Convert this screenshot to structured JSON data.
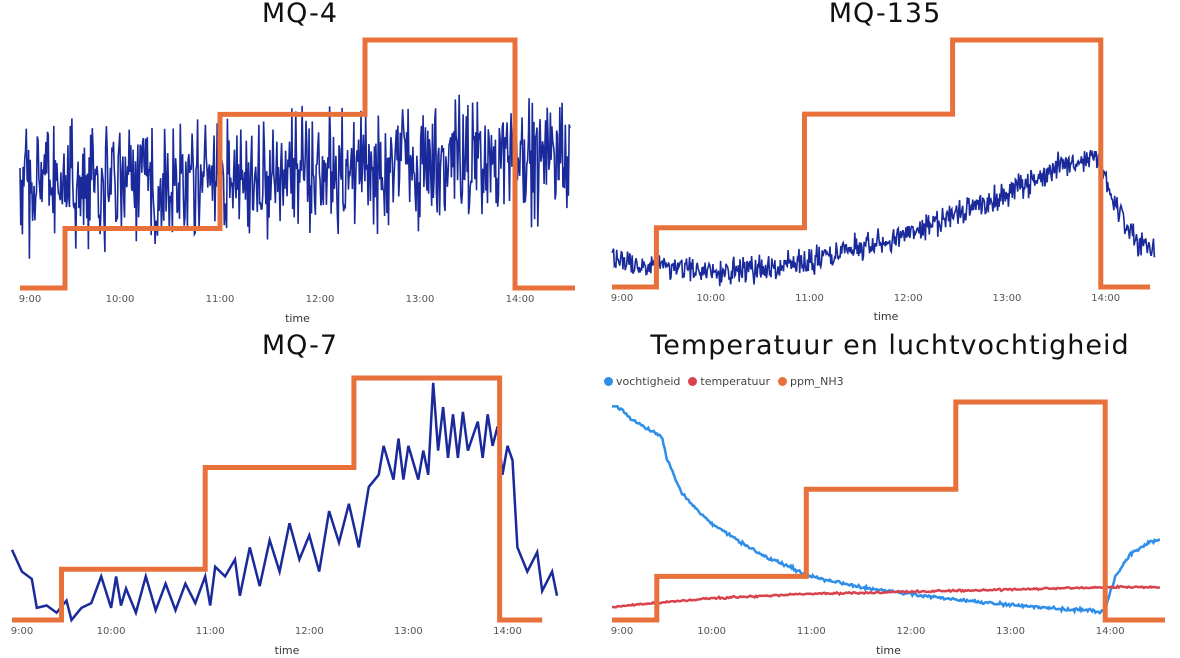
{
  "colors": {
    "sensor": "#1a2a9b",
    "ppm": "#e8703a",
    "vocht": "#2f8fe8",
    "temp": "#d9434e"
  },
  "chart_data": [
    {
      "id": "mq4",
      "type": "line",
      "title": "MQ-4",
      "xlabel": "time",
      "ylabel": "",
      "xticks": [
        "9:00",
        "10:00",
        "11:00",
        "12:00",
        "13:00",
        "14:00"
      ],
      "xlim": [
        9.0,
        14.55
      ],
      "ylim": [
        0,
        1
      ],
      "series": [
        {
          "role": "sensor",
          "noisy": true,
          "base": [
            [
              9.0,
              0.4
            ],
            [
              10.0,
              0.42
            ],
            [
              11.0,
              0.45
            ],
            [
              12.0,
              0.47
            ],
            [
              13.0,
              0.5
            ],
            [
              14.0,
              0.52
            ],
            [
              14.5,
              0.52
            ]
          ],
          "amp": 0.22,
          "n": 700
        },
        {
          "role": "step",
          "steps": [
            [
              9.0,
              0.0
            ],
            [
              9.45,
              0.24
            ],
            [
              11.0,
              0.7
            ],
            [
              12.45,
              1.0
            ],
            [
              13.95,
              0.0
            ],
            [
              14.55,
              0.0
            ]
          ]
        }
      ]
    },
    {
      "id": "mq135",
      "type": "line",
      "title": "MQ-135",
      "xlabel": "time",
      "ylabel": "",
      "xticks": [
        "9:00",
        "10:00",
        "11:00",
        "12:00",
        "13:00",
        "14:00"
      ],
      "xlim": [
        9.0,
        14.55
      ],
      "ylim": [
        0,
        1
      ],
      "series": [
        {
          "role": "sensor",
          "noisy": true,
          "base": [
            [
              9.0,
              0.12
            ],
            [
              9.5,
              0.08
            ],
            [
              10.0,
              0.06
            ],
            [
              10.5,
              0.07
            ],
            [
              11.0,
              0.1
            ],
            [
              11.5,
              0.16
            ],
            [
              12.0,
              0.22
            ],
            [
              12.5,
              0.3
            ],
            [
              13.0,
              0.38
            ],
            [
              13.5,
              0.48
            ],
            [
              13.9,
              0.53
            ],
            [
              14.05,
              0.38
            ],
            [
              14.3,
              0.2
            ],
            [
              14.5,
              0.13
            ]
          ],
          "amp": 0.05,
          "n": 700
        },
        {
          "role": "step",
          "steps": [
            [
              9.0,
              0.0
            ],
            [
              9.45,
              0.24
            ],
            [
              10.95,
              0.7
            ],
            [
              12.45,
              1.0
            ],
            [
              13.95,
              0.0
            ],
            [
              14.45,
              0.0
            ]
          ]
        }
      ]
    },
    {
      "id": "mq7",
      "type": "line",
      "title": "MQ-7",
      "xlabel": "time",
      "ylabel": "",
      "xticks": [
        "9:00",
        "10:00",
        "11:00",
        "12:00",
        "13:00",
        "14:00"
      ],
      "xlim": [
        9.0,
        14.55
      ],
      "ylim": [
        0,
        1
      ],
      "series": [
        {
          "role": "sensor",
          "noisy": false,
          "values": [
            [
              9.0,
              0.29
            ],
            [
              9.1,
              0.2
            ],
            [
              9.2,
              0.17
            ],
            [
              9.25,
              0.05
            ],
            [
              9.35,
              0.06
            ],
            [
              9.45,
              0.03
            ],
            [
              9.55,
              0.08
            ],
            [
              9.6,
              0.0
            ],
            [
              9.7,
              0.05
            ],
            [
              9.8,
              0.07
            ],
            [
              9.9,
              0.18
            ],
            [
              10.0,
              0.05
            ],
            [
              10.05,
              0.18
            ],
            [
              10.1,
              0.06
            ],
            [
              10.15,
              0.13
            ],
            [
              10.25,
              0.03
            ],
            [
              10.35,
              0.18
            ],
            [
              10.45,
              0.04
            ],
            [
              10.55,
              0.15
            ],
            [
              10.65,
              0.04
            ],
            [
              10.75,
              0.15
            ],
            [
              10.85,
              0.07
            ],
            [
              10.95,
              0.18
            ],
            [
              11.0,
              0.06
            ],
            [
              11.05,
              0.22
            ],
            [
              11.15,
              0.18
            ],
            [
              11.25,
              0.25
            ],
            [
              11.3,
              0.1
            ],
            [
              11.4,
              0.3
            ],
            [
              11.5,
              0.14
            ],
            [
              11.6,
              0.33
            ],
            [
              11.7,
              0.2
            ],
            [
              11.8,
              0.4
            ],
            [
              11.9,
              0.25
            ],
            [
              12.0,
              0.35
            ],
            [
              12.1,
              0.2
            ],
            [
              12.2,
              0.45
            ],
            [
              12.3,
              0.32
            ],
            [
              12.4,
              0.48
            ],
            [
              12.5,
              0.3
            ],
            [
              12.6,
              0.55
            ],
            [
              12.7,
              0.6
            ],
            [
              12.75,
              0.72
            ],
            [
              12.85,
              0.58
            ],
            [
              12.9,
              0.75
            ],
            [
              12.95,
              0.58
            ],
            [
              13.0,
              0.72
            ],
            [
              13.1,
              0.58
            ],
            [
              13.15,
              0.7
            ],
            [
              13.2,
              0.6
            ],
            [
              13.25,
              0.98
            ],
            [
              13.3,
              0.7
            ],
            [
              13.35,
              0.88
            ],
            [
              13.4,
              0.67
            ],
            [
              13.45,
              0.85
            ],
            [
              13.5,
              0.67
            ],
            [
              13.55,
              0.86
            ],
            [
              13.6,
              0.7
            ],
            [
              13.7,
              0.82
            ],
            [
              13.75,
              0.67
            ],
            [
              13.8,
              0.85
            ],
            [
              13.85,
              0.72
            ],
            [
              13.9,
              0.8
            ],
            [
              13.95,
              0.6
            ],
            [
              14.0,
              0.72
            ],
            [
              14.05,
              0.66
            ],
            [
              14.1,
              0.3
            ],
            [
              14.2,
              0.2
            ],
            [
              14.3,
              0.28
            ],
            [
              14.35,
              0.12
            ],
            [
              14.45,
              0.2
            ],
            [
              14.5,
              0.1
            ]
          ]
        },
        {
          "role": "step",
          "steps": [
            [
              9.0,
              0.0
            ],
            [
              9.5,
              0.21
            ],
            [
              10.95,
              0.63
            ],
            [
              12.45,
              1.0
            ],
            [
              13.92,
              0.0
            ],
            [
              14.35,
              0.0
            ]
          ]
        }
      ]
    },
    {
      "id": "temp",
      "type": "line",
      "title": "Temperatuur en luchtvochtigheid",
      "xlabel": "time",
      "ylabel": "",
      "xticks": [
        "9:00",
        "10:00",
        "11:00",
        "12:00",
        "13:00",
        "14:00"
      ],
      "xlim": [
        9.0,
        14.55
      ],
      "ylim": [
        0,
        1
      ],
      "legend": [
        {
          "name": "vochtigheid",
          "role": "vocht"
        },
        {
          "name": "temperatuur",
          "role": "temp"
        },
        {
          "name": "ppm_NH3",
          "role": "ppm"
        }
      ],
      "series": [
        {
          "role": "vocht",
          "noisy": true,
          "base": [
            [
              9.0,
              1.0
            ],
            [
              9.2,
              0.92
            ],
            [
              9.5,
              0.84
            ],
            [
              9.55,
              0.74
            ],
            [
              9.7,
              0.58
            ],
            [
              10.0,
              0.44
            ],
            [
              10.5,
              0.3
            ],
            [
              11.0,
              0.2
            ],
            [
              11.5,
              0.15
            ],
            [
              12.0,
              0.12
            ],
            [
              12.5,
              0.09
            ],
            [
              13.0,
              0.07
            ],
            [
              13.5,
              0.05
            ],
            [
              13.9,
              0.04
            ],
            [
              13.95,
              0.05
            ],
            [
              14.05,
              0.2
            ],
            [
              14.2,
              0.3
            ],
            [
              14.4,
              0.36
            ],
            [
              14.5,
              0.37
            ]
          ],
          "amp": 0.007,
          "n": 500
        },
        {
          "role": "temp",
          "noisy": true,
          "base": [
            [
              9.0,
              0.06
            ],
            [
              10.0,
              0.1
            ],
            [
              11.0,
              0.12
            ],
            [
              12.0,
              0.13
            ],
            [
              13.0,
              0.14
            ],
            [
              14.0,
              0.15
            ],
            [
              14.5,
              0.15
            ]
          ],
          "amp": 0.004,
          "n": 400
        },
        {
          "role": "step",
          "steps": [
            [
              9.0,
              0.0
            ],
            [
              9.45,
              0.2
            ],
            [
              10.95,
              0.6
            ],
            [
              12.45,
              1.0
            ],
            [
              13.95,
              0.0
            ],
            [
              14.55,
              0.0
            ]
          ]
        }
      ]
    }
  ]
}
